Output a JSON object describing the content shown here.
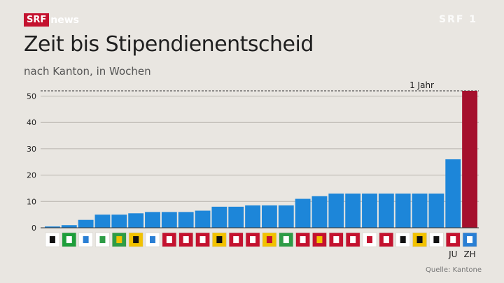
{
  "brand": {
    "channel": "SRF",
    "product": "news",
    "watermark": "SRF 1"
  },
  "colors": {
    "bar": "#1d86d9",
    "highlight": "#a5102d",
    "background": "#e9e6e1"
  },
  "chart_data": {
    "type": "bar",
    "title": "Zeit bis Stipendienentscheid",
    "subtitle": "nach Kanton, in Wochen",
    "xlabel": "",
    "ylabel": "",
    "ylim": [
      0,
      52
    ],
    "yticks": [
      0,
      10,
      20,
      30,
      40,
      50
    ],
    "grid": true,
    "reference_line": {
      "value": 52,
      "label": "1 Jahr",
      "style": "dashed"
    },
    "categories": [
      "AR",
      "AI",
      "ZG",
      "TG",
      "SG",
      "GR",
      "LU",
      "VS",
      "NE",
      "TI",
      "SH",
      "SO",
      "NW",
      "GE",
      "VD",
      "SZ",
      "BE",
      "OW",
      "GL",
      "BL",
      "SO2",
      "FR",
      "UR",
      "BS",
      "JU",
      "ZH"
    ],
    "category_icons": [
      "flag-ar-bear",
      "flag-ai-green",
      "flag-zg",
      "flag-tg",
      "flag-sg",
      "flag-gr",
      "flag-lu",
      "flag-vs",
      "flag-ne",
      "flag-ti",
      "flag-sh",
      "flag-so",
      "flag-nw",
      "flag-ge",
      "flag-vd",
      "flag-sz",
      "flag-be",
      "flag-ow",
      "flag-gl",
      "flag-bl",
      "flag-so2",
      "flag-fr",
      "flag-ur",
      "flag-bs",
      "flag-ju",
      "flag-zh"
    ],
    "visible_labels": [
      "JU",
      "ZH"
    ],
    "values": [
      0.5,
      1,
      3,
      5,
      5,
      5.5,
      6,
      6,
      6,
      6.5,
      8,
      8,
      8.5,
      8.5,
      8.5,
      11,
      12,
      13,
      13,
      13,
      13,
      13,
      13,
      13,
      26,
      52
    ],
    "highlight_index": 25
  },
  "footer": {
    "source": "Quelle: Kantone"
  }
}
